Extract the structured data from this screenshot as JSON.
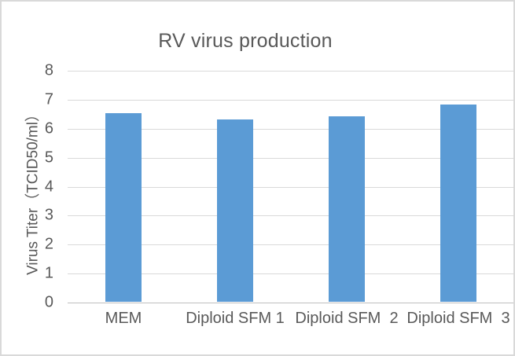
{
  "window": {
    "background_color": "#ffffff",
    "border_color": "#d9d9d9"
  },
  "chart_data": {
    "type": "bar",
    "title": "RV virus production",
    "categories": [
      "MEM",
      "Diploid SFM 1",
      "Diploid SFM  2",
      "Diploid SFM  3"
    ],
    "values": [
      6.5,
      6.3,
      6.4,
      6.8
    ],
    "xlabel": "",
    "ylabel": "Virus Titer（TCID50/ml）",
    "ylim": [
      0,
      8
    ],
    "ytick_step": 1,
    "yticks": [
      0,
      1,
      2,
      3,
      4,
      5,
      6,
      7,
      8
    ],
    "grid": true,
    "legend": false,
    "bar_color": "#5b9bd5",
    "gridline_color": "#d9d9d9",
    "axis_line_color": "#bfbfbf",
    "text_color": "#595959"
  }
}
